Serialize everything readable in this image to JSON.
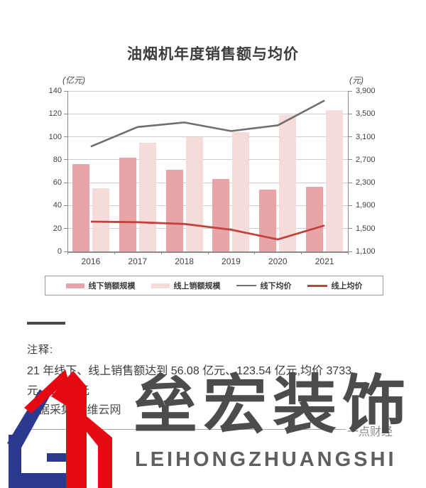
{
  "title": "油烟机年度销售额与均价",
  "chart_data": {
    "type": "bar",
    "subtype": "bar+line combo, dual axis",
    "categories": [
      "2016",
      "2017",
      "2018",
      "2019",
      "2020",
      "2021"
    ],
    "series": [
      {
        "name": "线下销额规模",
        "type": "bar",
        "axis": "left",
        "color": "#e8a4a6",
        "values": [
          76,
          82,
          71,
          63,
          54,
          56.08
        ]
      },
      {
        "name": "线上销额规模",
        "type": "bar",
        "axis": "left",
        "color": "#f5dcdb",
        "values": [
          55,
          95,
          100,
          104,
          119,
          123.54
        ]
      },
      {
        "name": "线下均价",
        "type": "line",
        "axis": "right",
        "color": "#6f6f6f",
        "values": [
          2930,
          3270,
          3350,
          3200,
          3300,
          3733
        ]
      },
      {
        "name": "线上均价",
        "type": "line",
        "axis": "right",
        "color": "#c2423c",
        "values": [
          1620,
          1610,
          1580,
          1480,
          1310,
          1553
        ]
      }
    ],
    "title": "油烟机年度销售额与均价",
    "left_axis": {
      "unit": "(亿元)",
      "min": 0,
      "max": 140,
      "step": 20
    },
    "right_axis": {
      "unit": "(元)",
      "min": 1100,
      "max": 3900,
      "step": 400
    },
    "legend_position": "bottom",
    "grid": true
  },
  "notes": {
    "label": "注释:",
    "line1": "21 年线下、线上销售额达到 56.08 亿元、123.54 亿元,均价 3733",
    "line2": "元、1553 元",
    "line3": "数据采集:奥维云网",
    "attribution": "一点财经"
  },
  "watermark": {
    "cn": "垒宏装饰",
    "en": "LEIHONGZHUANGSHI",
    "logo_blue": "#2b3a8f",
    "logo_red": "#e60914"
  }
}
